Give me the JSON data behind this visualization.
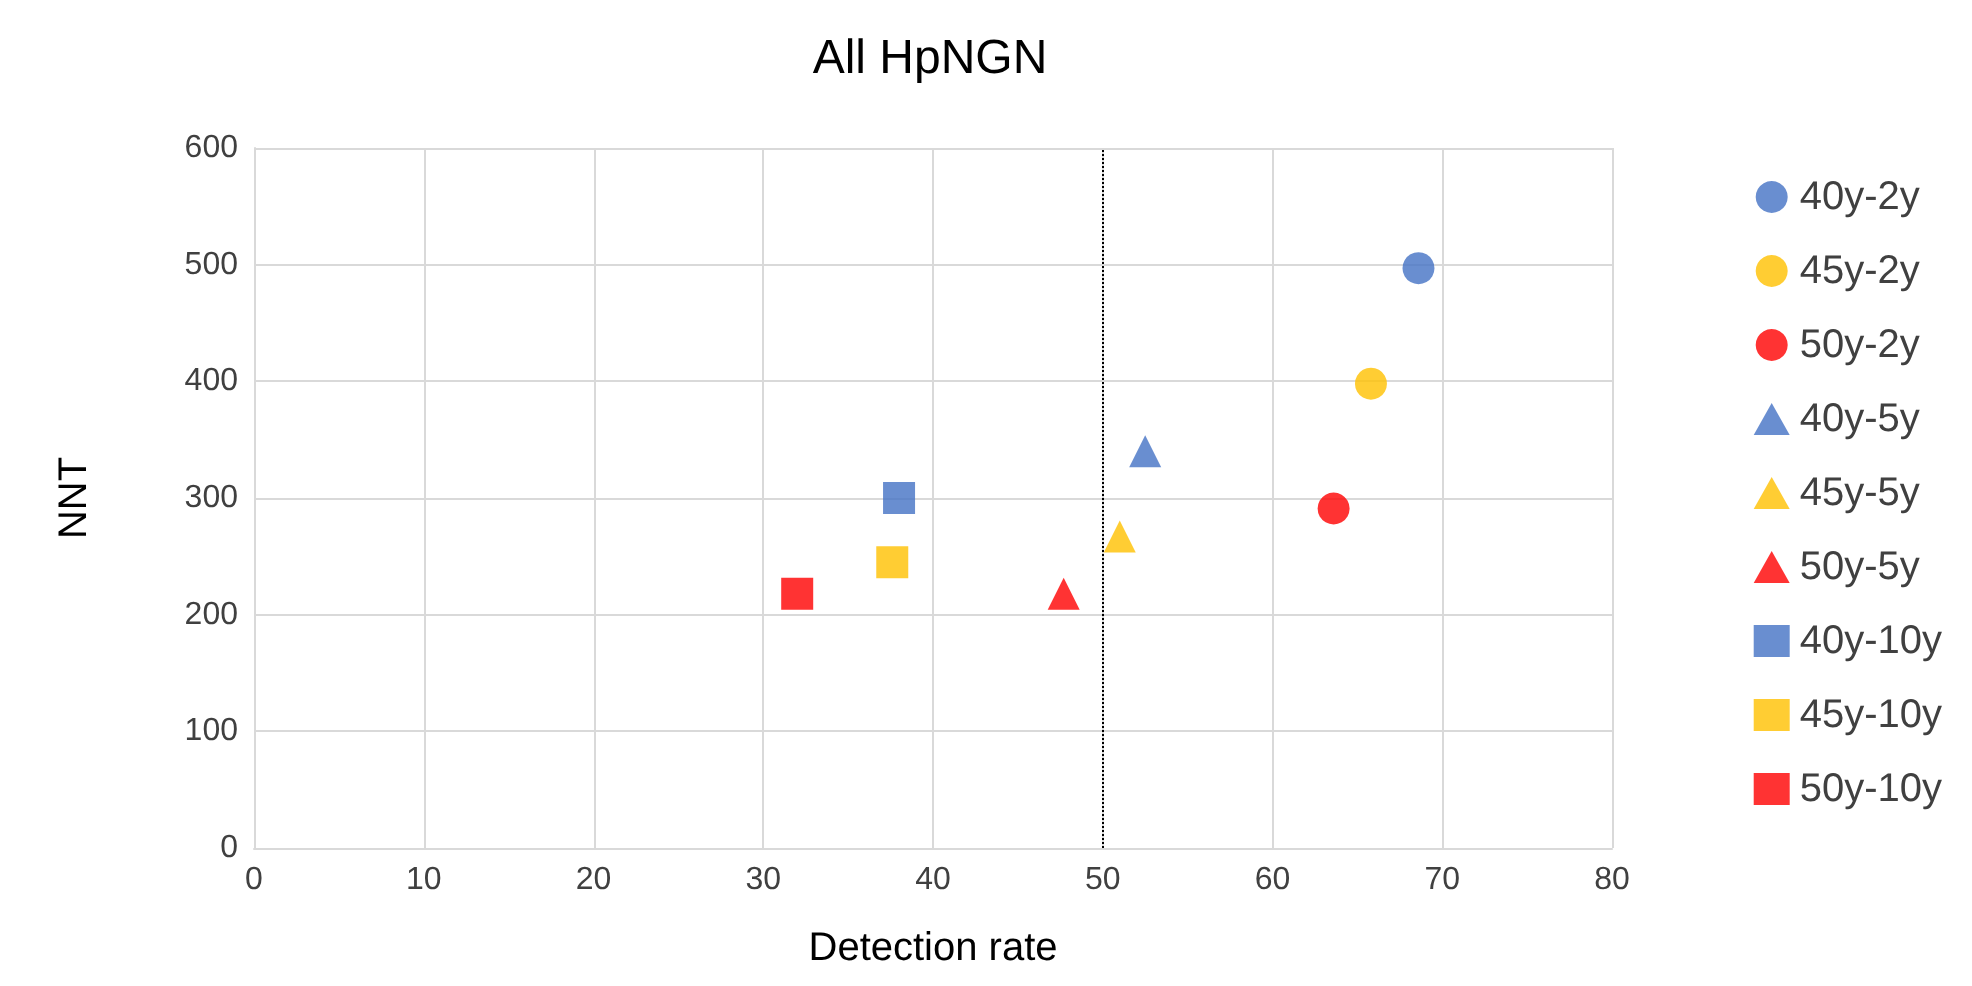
{
  "chart_data": {
    "type": "scatter",
    "title": "All HpNGN",
    "xlabel": "Detection rate",
    "ylabel": "NNT",
    "xlim": [
      0,
      80
    ],
    "xticks": [
      0,
      10,
      20,
      30,
      40,
      50,
      60,
      70,
      80
    ],
    "ylim": [
      0,
      600
    ],
    "yticks": [
      0,
      100,
      200,
      300,
      400,
      500,
      600
    ],
    "grid": true,
    "legend": "right",
    "ref_lines": [
      {
        "axis": "x",
        "value": 50,
        "color": "#000000",
        "line_style": "dotted"
      }
    ],
    "series": [
      {
        "name": "40y-2y",
        "color": "#4472c4",
        "marker": "circle",
        "x": [
          68.6
        ],
        "values": [
          497
        ]
      },
      {
        "name": "45y-2y",
        "color": "#ffc000",
        "marker": "circle",
        "x": [
          65.8
        ],
        "values": [
          398
        ]
      },
      {
        "name": "50y-2y",
        "color": "#ff0000",
        "marker": "circle",
        "x": [
          63.6
        ],
        "values": [
          291
        ]
      },
      {
        "name": "40y-5y",
        "color": "#4472c4",
        "marker": "triangle",
        "x": [
          52.5
        ],
        "values": [
          340
        ]
      },
      {
        "name": "45y-5y",
        "color": "#ffc000",
        "marker": "triangle",
        "x": [
          51.0
        ],
        "values": [
          267
        ]
      },
      {
        "name": "50y-5y",
        "color": "#ff0000",
        "marker": "triangle",
        "x": [
          47.7
        ],
        "values": [
          218
        ]
      },
      {
        "name": "40y-10y",
        "color": "#4472c4",
        "marker": "square",
        "x": [
          38.0
        ],
        "values": [
          300
        ]
      },
      {
        "name": "45y-10y",
        "color": "#ffc000",
        "marker": "square",
        "x": [
          37.6
        ],
        "values": [
          245
        ]
      },
      {
        "name": "50y-10y",
        "color": "#ff0000",
        "marker": "square",
        "x": [
          32.0
        ],
        "values": [
          218
        ]
      }
    ]
  }
}
